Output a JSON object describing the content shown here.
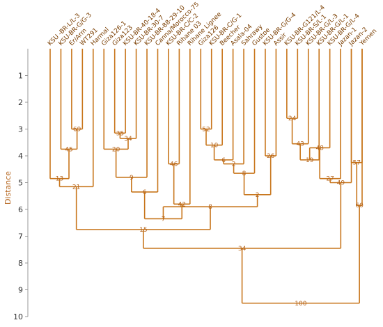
{
  "chart_data": {
    "type": "dendrogram",
    "ylabel": "Distance",
    "ylim": [
      0,
      10
    ],
    "yticks": [
      1,
      2,
      3,
      4,
      5,
      6,
      7,
      8,
      9,
      10
    ],
    "colors": {
      "branch": "#c8761c",
      "label": "#b5651d",
      "leaf_text": "#7a3e00",
      "axis": "#9a9a9a"
    },
    "leaves": [
      "KSU -BR-L/L-3",
      "KSU-BR-G/G-3",
      "Er/Arm",
      "WT291",
      "Harmal",
      "Giza126-1",
      "Giza123",
      "KSU-BR-40-18-4",
      "KSU-BR-30-7",
      "KSU-BR-88-29-10",
      "Canna/Morocco-75",
      "KSU-BR-C/C-2",
      "Rihane 03",
      "Rihane Lignee",
      "Giza126",
      "KSU-BR-C/G-1",
      "Beecher",
      "Asala-04",
      "Sahrawy",
      "Gustoe",
      "KSU-BR-G/G-4",
      "Assir",
      "KSU-BR-G121/L-4",
      "KSU-BR-S/L-1",
      "KSU-BR-G/L-3",
      "KSU-BR-G/L-1",
      "KSU-BR-G/L-4",
      "Jazan-1",
      "Jazan-2",
      "Yemen"
    ],
    "merges": [
      {
        "id": "n1",
        "children": [
          "L:2",
          "L:3"
        ],
        "height": 3.0,
        "label": "69"
      },
      {
        "id": "n2",
        "children": [
          "L:1",
          "n1"
        ],
        "height": 3.75,
        "label": "45"
      },
      {
        "id": "n3",
        "children": [
          "L:0",
          "n2"
        ],
        "height": 4.85,
        "label": "13"
      },
      {
        "id": "n4",
        "children": [
          "n3",
          "L:4"
        ],
        "height": 5.15,
        "label": "21"
      },
      {
        "id": "n5",
        "children": [
          "L:6",
          "L:7"
        ],
        "height": 3.15,
        "label": "35"
      },
      {
        "id": "n6",
        "children": [
          "n5",
          "L:8"
        ],
        "height": 3.35,
        "label": "34"
      },
      {
        "id": "n7",
        "children": [
          "L:5",
          "n6"
        ],
        "height": 3.75,
        "label": "20"
      },
      {
        "id": "n8",
        "children": [
          "n7",
          "L:9"
        ],
        "height": 4.8,
        "label": "9"
      },
      {
        "id": "n9",
        "children": [
          "n8",
          "L:10"
        ],
        "height": 5.35,
        "label": "6"
      },
      {
        "id": "n10",
        "children": [
          "L:11",
          "L:12"
        ],
        "height": 4.3,
        "label": "46"
      },
      {
        "id": "n11",
        "children": [
          "n10",
          "L:13"
        ],
        "height": 5.8,
        "label": "42"
      },
      {
        "id": "n12",
        "children": [
          "n9",
          "n11"
        ],
        "height": 6.35,
        "label": "7"
      },
      {
        "id": "n13",
        "children": [
          "L:14",
          "L:15"
        ],
        "height": 3.0,
        "label": "52"
      },
      {
        "id": "n14",
        "children": [
          "n13",
          "L:16"
        ],
        "height": 3.6,
        "label": "10"
      },
      {
        "id": "n15",
        "children": [
          "n14",
          "L:17"
        ],
        "height": 4.15,
        "label": "6"
      },
      {
        "id": "n16",
        "children": [
          "n15",
          "L:18"
        ],
        "height": 4.3,
        "label": "2"
      },
      {
        "id": "n17",
        "children": [
          "n16",
          "L:19"
        ],
        "height": 4.65,
        "label": "8"
      },
      {
        "id": "n18",
        "children": [
          "L:20",
          "L:21"
        ],
        "height": 4.0,
        "label": "26"
      },
      {
        "id": "n19",
        "children": [
          "n17",
          "n18"
        ],
        "height": 5.45,
        "label": "2"
      },
      {
        "id": "n20",
        "children": [
          "n12",
          "n19"
        ],
        "height": 5.9,
        "label": "8"
      },
      {
        "id": "n21",
        "children": [
          "n4",
          "n20"
        ],
        "height": 6.75,
        "label": "15"
      },
      {
        "id": "n22",
        "children": [
          "L:22",
          "L:23"
        ],
        "height": 2.6,
        "label": "24"
      },
      {
        "id": "n23",
        "children": [
          "n22",
          "L:24"
        ],
        "height": 3.55,
        "label": "43"
      },
      {
        "id": "n24",
        "children": [
          "n23",
          "L:25"
        ],
        "height": 4.15,
        "label": "19"
      },
      {
        "id": "n25",
        "children": [
          "n24",
          "L:26"
        ],
        "height": 3.7,
        "label": "48"
      },
      {
        "id": "n26",
        "children": [
          "n25",
          "L:27"
        ],
        "height": 4.85,
        "label": "27"
      },
      {
        "id": "n27",
        "children": [
          "n26",
          "L:28"
        ],
        "height": 5.0,
        "label": "49"
      },
      {
        "id": "n28",
        "children": [
          "n21",
          "n27"
        ],
        "height": 7.45,
        "label": "34"
      },
      {
        "id": "n29",
        "children": [
          "L:28",
          "L:29"
        ],
        "height": 4.25,
        "label": "57"
      },
      {
        "id": "n30",
        "children": [
          "n29",
          "L:29"
        ],
        "height": 5.85,
        "label": "60"
      },
      {
        "id": "n31",
        "children": [
          "n28",
          "n30"
        ],
        "height": 9.5,
        "label": "100"
      }
    ]
  }
}
